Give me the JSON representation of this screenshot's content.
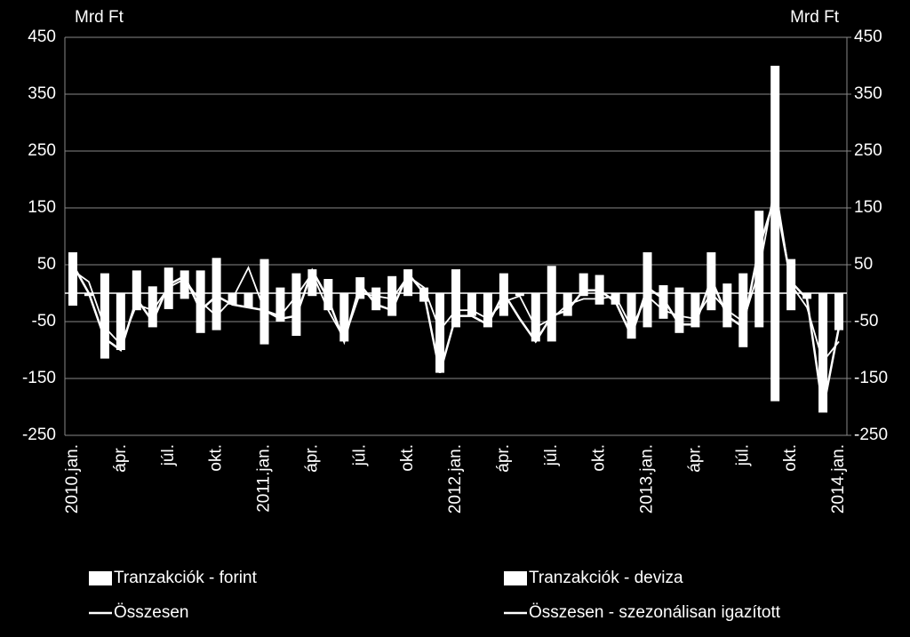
{
  "chart_data": {
    "type": "bar_line",
    "y_label": "Mrd Ft",
    "y2_label": "Mrd Ft",
    "categories": [
      "2010.jan.",
      null,
      null,
      "ápr.",
      null,
      null,
      "júl.",
      null,
      null,
      "okt.",
      null,
      null,
      "2011.jan.",
      null,
      null,
      "ápr.",
      null,
      null,
      "júl.",
      null,
      null,
      "okt.",
      null,
      null,
      "2012.jan.",
      null,
      null,
      "ápr.",
      null,
      null,
      "júl.",
      null,
      null,
      "okt.",
      null,
      null,
      "2013.jan.",
      null,
      null,
      "ápr.",
      null,
      null,
      "júl.",
      null,
      null,
      "okt.",
      null,
      null,
      "2014.jan."
    ],
    "series": [
      {
        "name": "Tranzakciók - forint",
        "kind": "bar",
        "color": "#ffffff",
        "values": [
          72,
          0,
          35,
          0,
          40,
          12,
          45,
          40,
          40,
          62,
          0,
          0,
          60,
          10,
          35,
          42,
          25,
          0,
          28,
          10,
          30,
          42,
          10,
          0,
          42,
          0,
          0,
          35,
          0,
          0,
          48,
          0,
          35,
          32,
          0,
          0,
          72,
          14,
          10,
          0,
          72,
          17,
          35,
          145,
          400,
          60,
          0,
          0,
          0
        ]
      },
      {
        "name": "Tranzakciók - deviza",
        "kind": "bar",
        "color": "#ffffff",
        "values": [
          -22,
          -5,
          -115,
          -100,
          -30,
          -60,
          -28,
          -10,
          -70,
          -65,
          -20,
          -25,
          -90,
          -50,
          -75,
          -5,
          -30,
          -85,
          -10,
          -30,
          -40,
          -5,
          -15,
          -140,
          -60,
          -40,
          -60,
          -40,
          -5,
          -85,
          -85,
          -40,
          -5,
          -20,
          -20,
          -80,
          -60,
          -45,
          -70,
          -60,
          -30,
          -60,
          -95,
          -60,
          -190,
          -30,
          -10,
          -210,
          -65
        ]
      },
      {
        "name": "Összesen",
        "kind": "line",
        "color": "#ffffff",
        "values": [
          50,
          0,
          -80,
          -100,
          -10,
          -50,
          15,
          30,
          -30,
          -5,
          -20,
          -25,
          -30,
          -45,
          -40,
          40,
          -10,
          -85,
          15,
          -20,
          -30,
          35,
          0,
          -140,
          -40,
          -40,
          -55,
          0,
          -45,
          -85,
          -40,
          -30,
          5,
          5,
          -15,
          -75,
          10,
          -10,
          -55,
          -55,
          25,
          -40,
          -60,
          80,
          170,
          20,
          -10,
          -205,
          -60
        ]
      },
      {
        "name": "Összesen - szezonálisan igazított",
        "kind": "line",
        "color": "#ffffff",
        "values": [
          40,
          20,
          -60,
          -90,
          -20,
          -30,
          10,
          25,
          -15,
          -40,
          -10,
          45,
          -30,
          -40,
          -5,
          35,
          -30,
          -80,
          0,
          -5,
          -10,
          30,
          10,
          -65,
          -30,
          -30,
          -45,
          -15,
          -5,
          -60,
          -45,
          -20,
          -10,
          -10,
          -5,
          -60,
          -5,
          -30,
          -40,
          -45,
          0,
          -30,
          -50,
          40,
          190,
          15,
          -25,
          -120,
          -85
        ]
      }
    ],
    "ylim": [
      -250,
      450
    ],
    "yticks": [
      -250,
      -150,
      -50,
      50,
      150,
      250,
      350,
      450
    ],
    "y2lim": [
      -250,
      450
    ],
    "y2ticks": [
      -250,
      -150,
      -50,
      50,
      150,
      250,
      350,
      450
    ],
    "grid": true
  }
}
